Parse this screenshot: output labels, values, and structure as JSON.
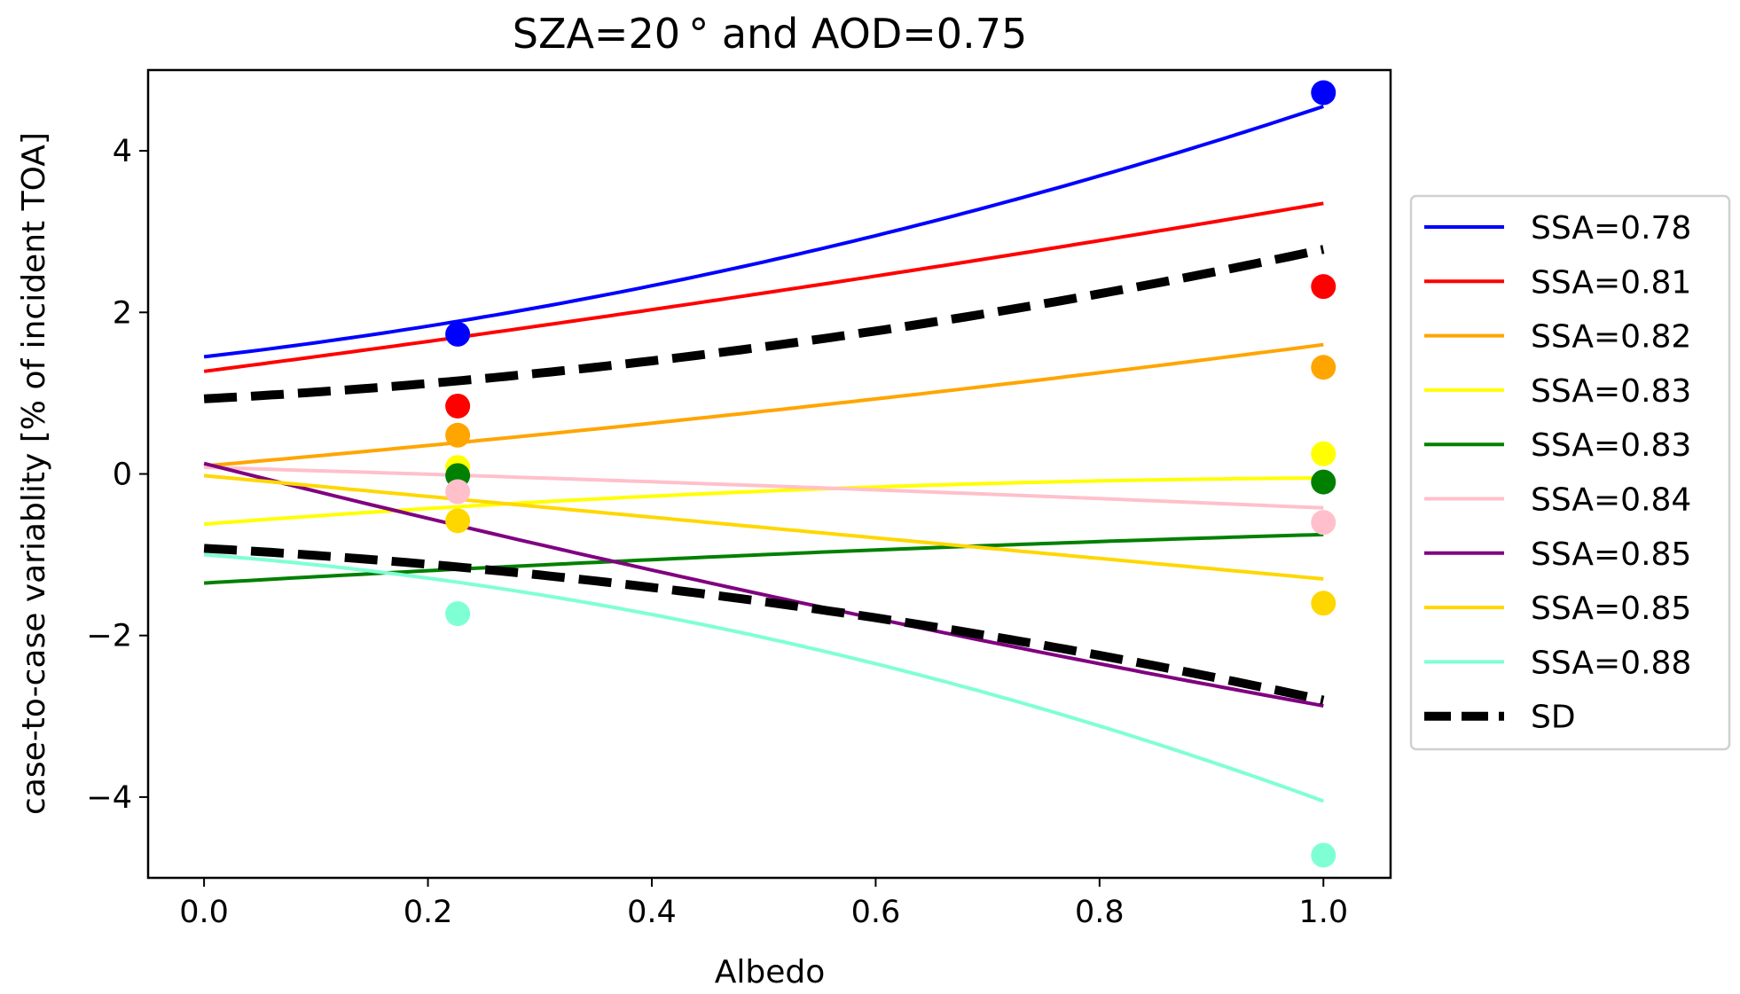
{
  "chart_data": {
    "type": "line",
    "title": "SZA=20$^\\circ$ and AOD=0.75",
    "title_display": "SZA=20 ° and AOD=0.75",
    "xlabel": "Albedo",
    "ylabel": "case-to-case variablity [% of incident TOA]",
    "xlim": [
      -0.05,
      1.06
    ],
    "ylim": [
      -5,
      5
    ],
    "xticks": [
      0.0,
      0.2,
      0.4,
      0.6,
      0.8,
      1.0
    ],
    "xtick_labels": [
      "0.0",
      "0.2",
      "0.4",
      "0.6",
      "0.8",
      "1.0"
    ],
    "yticks": [
      -4,
      -2,
      0,
      2,
      4
    ],
    "ytick_labels": [
      "−4",
      "−2",
      "0",
      "2",
      "4"
    ],
    "grid": false,
    "legend_placement": "outside-right",
    "curve_x_range": [
      0,
      1
    ],
    "series": [
      {
        "name": "SSA=0.78",
        "color": "#0000ff",
        "curve": {
          "x": [
            0,
            0.2,
            0.6,
            1.0
          ],
          "y": [
            1.45,
            1.83,
            2.95,
            4.55
          ]
        },
        "points": {
          "x": [
            0.2266,
            1.0
          ],
          "y": [
            1.73,
            4.72
          ]
        }
      },
      {
        "name": "SSA=0.81",
        "color": "#ff0000",
        "curve": {
          "x": [
            0,
            0.2,
            0.6,
            1.0
          ],
          "y": [
            1.27,
            1.64,
            2.45,
            3.35
          ]
        },
        "points": {
          "x": [
            0.2266,
            1.0
          ],
          "y": [
            0.84,
            2.32
          ]
        }
      },
      {
        "name": "SSA=0.82",
        "color": "#ffa500",
        "curve": {
          "x": [
            0,
            0.2,
            0.6,
            1.0
          ],
          "y": [
            0.1,
            0.35,
            0.93,
            1.6
          ]
        },
        "points": {
          "x": [
            0.2266,
            1.0
          ],
          "y": [
            0.48,
            1.32
          ]
        }
      },
      {
        "name": "SSA=0.83",
        "color": "#ffff00",
        "curve": {
          "x": [
            0,
            0.2,
            0.6,
            1.0
          ],
          "y": [
            -0.62,
            -0.43,
            -0.16,
            -0.05
          ]
        },
        "points": {
          "x": [
            0.2266,
            1.0
          ],
          "y": [
            0.08,
            0.25
          ]
        }
      },
      {
        "name": "SSA=0.83",
        "color": "#008000",
        "curve": {
          "x": [
            0,
            0.2,
            0.6,
            1.0
          ],
          "y": [
            -1.35,
            -1.2,
            -0.94,
            -0.75
          ]
        },
        "points": {
          "x": [
            0.2266,
            1.0
          ],
          "y": [
            -0.02,
            -0.1
          ]
        }
      },
      {
        "name": "SSA=0.84",
        "color": "#ffc0cb",
        "curve": {
          "x": [
            0,
            0.2,
            0.6,
            1.0
          ],
          "y": [
            0.08,
            0.0,
            -0.2,
            -0.42
          ]
        },
        "points": {
          "x": [
            0.2266,
            1.0
          ],
          "y": [
            -0.22,
            -0.6
          ]
        }
      },
      {
        "name": "SSA=0.85",
        "color": "#800080",
        "curve": {
          "x": [
            0,
            0.2,
            0.6,
            1.0
          ],
          "y": [
            0.13,
            -0.55,
            -1.79,
            -2.87
          ]
        },
        "points": {
          "x": [],
          "y": []
        }
      },
      {
        "name": "SSA=0.85",
        "color": "#ffd700",
        "curve": {
          "x": [
            0,
            0.2,
            0.6,
            1.0
          ],
          "y": [
            -0.02,
            -0.28,
            -0.79,
            -1.3
          ]
        },
        "points": {
          "x": [
            0.2266,
            1.0
          ],
          "y": [
            -0.58,
            -1.6
          ]
        }
      },
      {
        "name": "SSA=0.88",
        "color": "#7fffd4",
        "curve": {
          "x": [
            0,
            0.2,
            0.6,
            1.0
          ],
          "y": [
            -1.0,
            -1.29,
            -2.35,
            -4.05
          ]
        },
        "points": {
          "x": [
            0.2266,
            1.0
          ],
          "y": [
            -1.73,
            -4.72
          ]
        }
      },
      {
        "name": "SD",
        "color": "#000000",
        "dashed": true,
        "curve": {
          "x": [
            0,
            0.2,
            0.6,
            1.0
          ],
          "y": [
            0.93,
            1.12,
            1.77,
            2.78
          ]
        },
        "points": {
          "x": [],
          "y": []
        }
      },
      {
        "name": "",
        "color": "#000000",
        "dashed": true,
        "curve": {
          "x": [
            0,
            0.2,
            0.6,
            1.0
          ],
          "y": [
            -0.92,
            -1.12,
            -1.78,
            -2.8
          ]
        },
        "points": {
          "x": [],
          "y": []
        }
      }
    ]
  }
}
